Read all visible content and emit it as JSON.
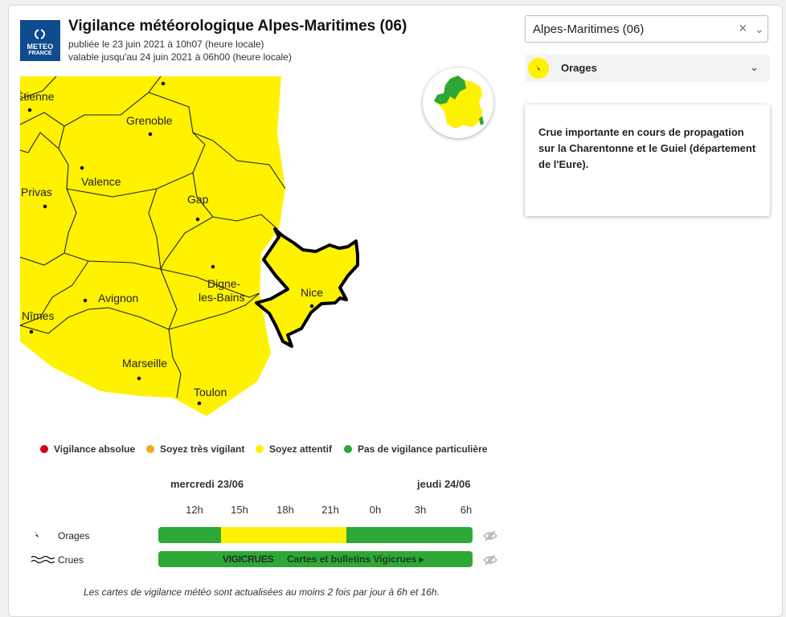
{
  "header": {
    "logo_line1": "METEO",
    "logo_line2": "FRANCE",
    "title": "Vigilance météorologique Alpes-Maritimes  (06)",
    "published": "publiée le 23 juin 2021 à 10h07 (heure locale)",
    "valid_until": "valable jusqu'au 24 juin 2021 à 06h00 (heure locale)"
  },
  "map": {
    "cities": [
      "Étienne",
      "Grenoble",
      "Valence",
      "Privas",
      "Gap",
      "Nice",
      "Digne-",
      "les-Bains",
      "Avignon",
      "Nîmes",
      "Marseille",
      "Toulon"
    ],
    "fill_color": "#fff200",
    "border_color": "#222222"
  },
  "legend": [
    {
      "label": "Vigilance absolue",
      "color": "#d0021b"
    },
    {
      "label": "Soyez très vigilant",
      "color": "#f5a623"
    },
    {
      "label": "Soyez attentif",
      "color": "#fff200"
    },
    {
      "label": "Pas de vigilance particulière",
      "color": "#2da837"
    }
  ],
  "timeline": {
    "days": [
      "mercredi 23/06",
      "jeudi 24/06"
    ],
    "hours": [
      "12h",
      "15h",
      "18h",
      "21h",
      "0h",
      "3h",
      "6h"
    ],
    "rows": [
      {
        "icon": "lightning-icon",
        "label": "Orages"
      },
      {
        "icon": "waves-icon",
        "label": "Crues"
      }
    ],
    "vigicrues_brand": "VIGICRUES",
    "vigicrues_link": "Cartes et bulletins Vigicrues ▸"
  },
  "footnote": "Les cartes de vigilance météo sont actualisées au moins 2 fois par jour à 6h et 16h.",
  "sidebar": {
    "department_select": "Alpes-Maritimes  (06)",
    "phenomenon": "Orages",
    "bulletin": "Crue importante en cours de propagation sur la Charentonne et le Guiel (département de l'Eure)."
  }
}
